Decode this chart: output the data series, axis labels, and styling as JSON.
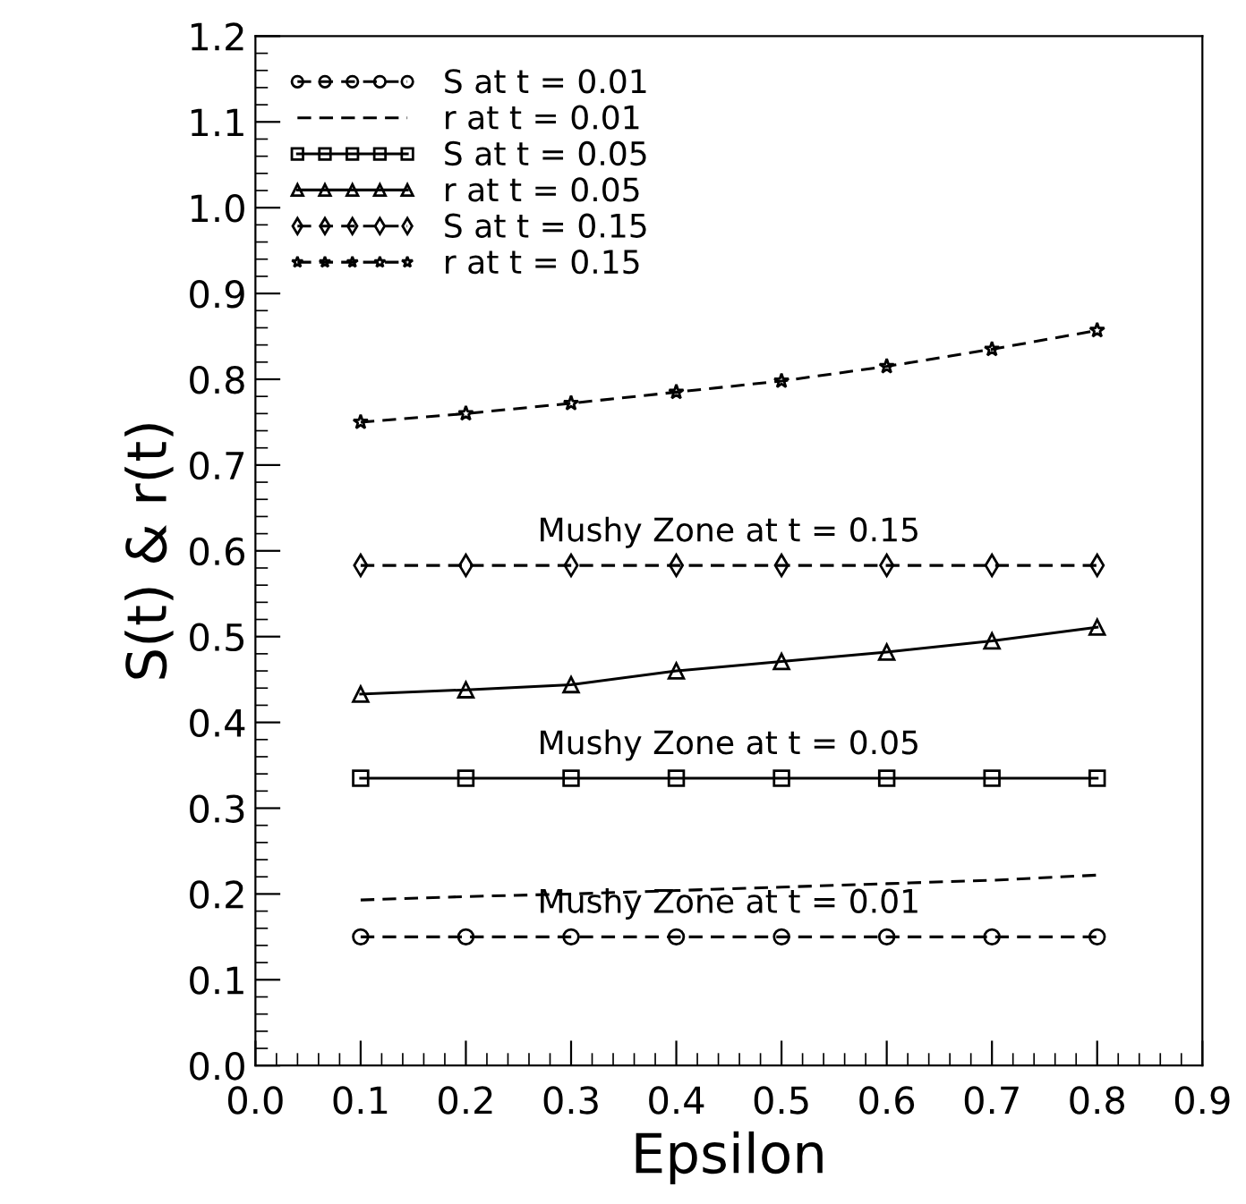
{
  "chart_data": {
    "type": "line",
    "xlabel": "Epsilon",
    "ylabel": "S(t) & r(t)",
    "x": [
      0.1,
      0.2,
      0.3,
      0.4,
      0.5,
      0.6,
      0.7,
      0.8
    ],
    "xlim": [
      0.0,
      0.9
    ],
    "xticks": [
      {
        "value": 0.0,
        "label": "0.0"
      },
      0.1,
      0.2,
      0.3,
      0.4,
      0.5,
      0.6,
      0.7,
      0.8,
      0.9
    ],
    "ylim": [
      0.0,
      1.2
    ],
    "yticks": [
      {
        "value": 0.0,
        "label": "0.0"
      },
      0.1,
      0.2,
      0.3,
      0.4,
      0.5,
      0.6,
      0.7,
      0.8,
      0.9,
      {
        "value": 1.0,
        "label": "1.0"
      },
      1.1,
      1.2
    ],
    "grid": false,
    "legend": "top left",
    "series": [
      {
        "name": "S at t = 0.01",
        "color": "#000000",
        "marker": "circle",
        "line_style": "dashed",
        "values": [
          0.15,
          0.15,
          0.15,
          0.15,
          0.15,
          0.15,
          0.15,
          0.15
        ]
      },
      {
        "name": "r at t = 0.01",
        "color": "#000000",
        "marker": "none",
        "line_style": "dashed",
        "values": [
          0.193,
          0.197,
          0.2,
          0.204,
          0.208,
          0.212,
          0.216,
          0.222
        ]
      },
      {
        "name": "S at t = 0.05",
        "color": "#000000",
        "marker": "square",
        "line_style": "solid",
        "values": [
          0.335,
          0.335,
          0.335,
          0.335,
          0.335,
          0.335,
          0.335,
          0.335
        ]
      },
      {
        "name": "r at t = 0.05",
        "color": "#000000",
        "marker": "triangle",
        "line_style": "solid",
        "values": [
          0.433,
          0.438,
          0.444,
          0.46,
          0.471,
          0.482,
          0.495,
          0.511
        ]
      },
      {
        "name": "S at t = 0.15",
        "color": "#000000",
        "marker": "diamond",
        "line_style": "dashed",
        "values": [
          0.583,
          0.583,
          0.583,
          0.583,
          0.583,
          0.583,
          0.583,
          0.583
        ]
      },
      {
        "name": "r at t = 0.15",
        "color": "#000000",
        "marker": "star",
        "line_style": "dashed",
        "values": [
          0.75,
          0.76,
          0.772,
          0.785,
          0.798,
          0.815,
          0.835,
          0.857
        ]
      }
    ],
    "annotations": [
      "Mushy Zone at t = 0.15",
      "Mushy Zone at t = 0.05",
      "Mushy Zone at t = 0.01"
    ]
  }
}
